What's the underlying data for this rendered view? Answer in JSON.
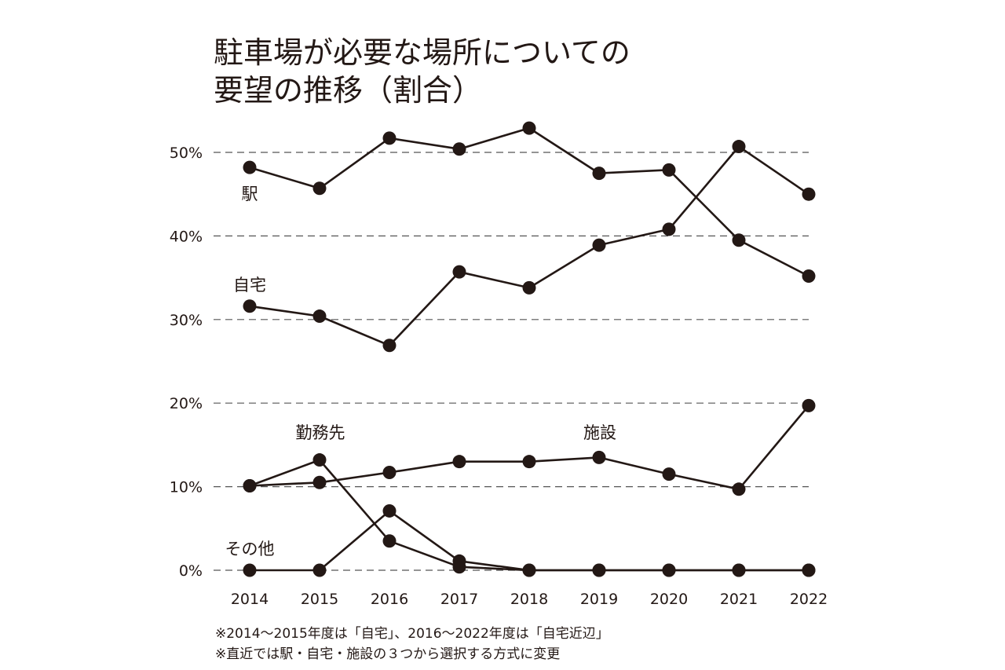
{
  "chart_data": {
    "type": "line",
    "title_lines": [
      "駐車場が必要な場所についての",
      "要望の推移（割合）"
    ],
    "xlabel": "",
    "ylabel": "",
    "x": [
      "2014",
      "2015",
      "2016",
      "2017",
      "2018",
      "2019",
      "2020",
      "2021",
      "2022"
    ],
    "ylim": [
      0,
      50
    ],
    "yticks": [
      0,
      10,
      20,
      30,
      40,
      50
    ],
    "ytick_labels": [
      "0%",
      "10%",
      "20%",
      "30%",
      "40%",
      "50%"
    ],
    "grid": true,
    "grid_style": "dashed horizontal",
    "series": [
      {
        "name": "駅",
        "values": [
          48.2,
          45.7,
          51.7,
          50.4,
          52.9,
          47.5,
          47.9,
          39.5,
          35.2
        ]
      },
      {
        "name": "自宅",
        "values": [
          31.6,
          30.4,
          26.9,
          35.7,
          33.8,
          38.9,
          40.8,
          50.7,
          45.0
        ]
      },
      {
        "name": "施設",
        "values": [
          10.1,
          10.5,
          11.7,
          13.0,
          13.0,
          13.5,
          11.5,
          9.7,
          19.7
        ]
      },
      {
        "name": "勤務先",
        "values": [
          10.1,
          13.2,
          3.5,
          0.4,
          0.0,
          0.0,
          0.0,
          0.0,
          0.0
        ]
      },
      {
        "name": "その他",
        "values": [
          0.0,
          0.0,
          7.1,
          1.1,
          0.0,
          0.0,
          0.0,
          0.0,
          0.0
        ]
      }
    ],
    "notes": [
      "※2014～2015年度は「自宅」、2016～2022年度は「自宅近辺」",
      "※直近では駅・自宅・施設の３つから選択する方式に変更"
    ],
    "colors": {
      "line": "#231815",
      "grid": "#555555",
      "background": "#ffffff"
    }
  }
}
